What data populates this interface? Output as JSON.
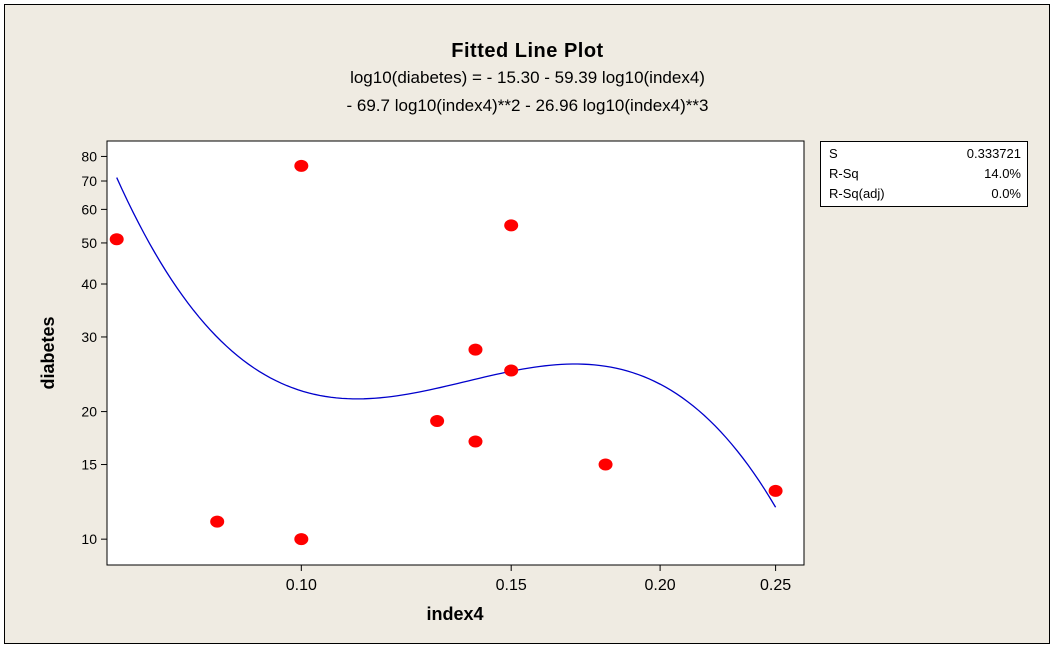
{
  "window": {
    "background": "#efebe2",
    "plot_background": "#ffffff"
  },
  "header": {
    "title": "Fitted Line Plot",
    "equation_line1": "log10(diabetes) =  - 15.30 - 59.39 log10(index4)",
    "equation_line2": "- 69.7 log10(index4)**2 - 26.96 log10(index4)**3"
  },
  "stats": [
    {
      "label": "S",
      "value": "0.333721"
    },
    {
      "label": "R-Sq",
      "value": "14.0%"
    },
    {
      "label": "R-Sq(adj)",
      "value": "0.0%"
    }
  ],
  "chart_data": {
    "type": "scatter",
    "xlabel": "index4",
    "ylabel": "diabetes",
    "x_scale": "log",
    "y_scale": "log",
    "xlim": [
      0.0687,
      0.2641
    ],
    "ylim": [
      8.69,
      87.0
    ],
    "x_ticks": [
      0.1,
      0.15,
      0.2,
      0.25
    ],
    "x_tick_labels": [
      "0.10",
      "0.15",
      "0.20",
      "0.25"
    ],
    "y_ticks": [
      10,
      15,
      20,
      30,
      40,
      50,
      60,
      70,
      80
    ],
    "y_tick_labels": [
      "10",
      "15",
      "20",
      "30",
      "40",
      "50",
      "60",
      "70",
      "80"
    ],
    "points": [
      {
        "x": 0.07,
        "y": 51
      },
      {
        "x": 0.085,
        "y": 11
      },
      {
        "x": 0.1,
        "y": 76
      },
      {
        "x": 0.1,
        "y": 10
      },
      {
        "x": 0.13,
        "y": 19
      },
      {
        "x": 0.14,
        "y": 28
      },
      {
        "x": 0.14,
        "y": 17
      },
      {
        "x": 0.15,
        "y": 55
      },
      {
        "x": 0.15,
        "y": 25
      },
      {
        "x": 0.18,
        "y": 15
      },
      {
        "x": 0.25,
        "y": 13
      }
    ],
    "fit": {
      "intercept": -15.3,
      "b1": -59.39,
      "b2": -69.7,
      "b3": -26.96,
      "x_range": [
        0.07,
        0.25
      ]
    },
    "point_color": "#ff0000",
    "line_color": "#0000cc",
    "grid": false
  }
}
